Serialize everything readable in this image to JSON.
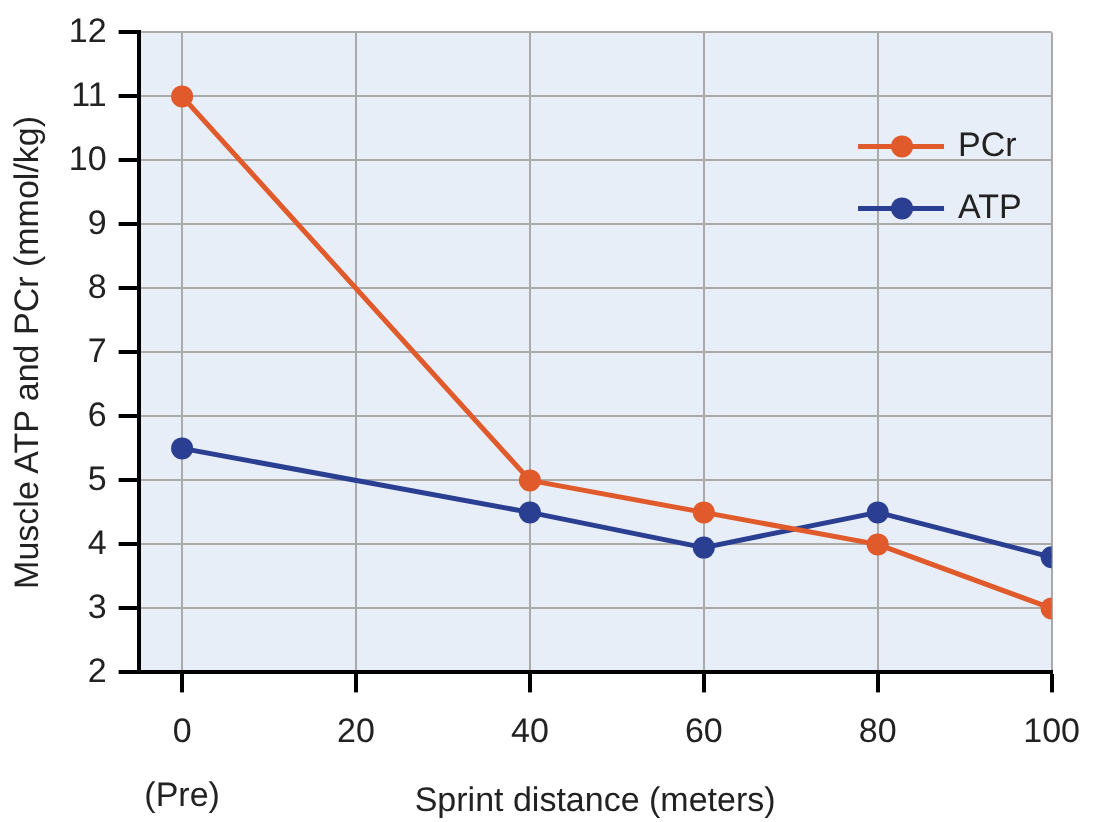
{
  "chart_data": {
    "type": "line",
    "xlabel": "Sprint distance (meters)",
    "ylabel": "Muscle ATP and PCr (mmol/kg)",
    "annotations": [
      "(Pre)"
    ],
    "x": [
      0,
      40,
      60,
      80,
      100
    ],
    "series": [
      {
        "name": "PCr",
        "color": "#e05a2b",
        "values": [
          11,
          5,
          4.5,
          4,
          3
        ]
      },
      {
        "name": "ATP",
        "color": "#2a3f92",
        "values": [
          5.5,
          4.5,
          3.95,
          4.5,
          3.8
        ]
      }
    ],
    "xlim": [
      -5,
      100
    ],
    "xticks": [
      0,
      20,
      40,
      60,
      80,
      100
    ],
    "ylim": [
      2,
      12
    ],
    "yticks": [
      2,
      3,
      4,
      5,
      6,
      7,
      8,
      9,
      10,
      11,
      12
    ],
    "grid": true,
    "legend": "top right",
    "marker": "circle",
    "line_style": "solid"
  }
}
